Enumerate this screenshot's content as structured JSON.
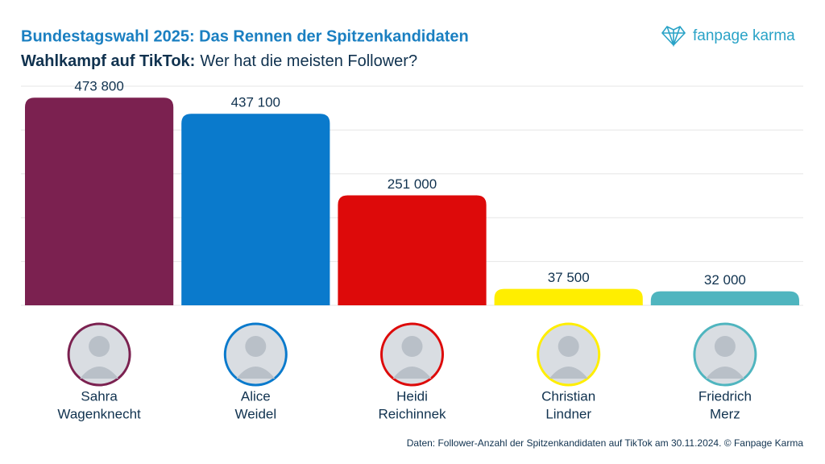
{
  "chart_data": {
    "type": "bar",
    "title": "Bundestagswahl 2025: Das Rennen der Spitzenkandidaten",
    "subtitle_bold": "Wahlkampf auf TikTok:",
    "subtitle": "Wer hat die meisten Follower?",
    "logo": "fanpage karma",
    "source": "Daten: Follower-Anzahl der Spitzenkandidaten auf TikTok am 30.11.2024. © Fanpage Karma",
    "categories": [
      [
        "Sahra",
        "Wagenknecht"
      ],
      [
        "Alice",
        "Weidel"
      ],
      [
        "Heidi",
        "Reichinnek"
      ],
      [
        "Christian",
        "Lindner"
      ],
      [
        "Friedrich",
        "Merz"
      ]
    ],
    "values": [
      473800,
      437100,
      251000,
      37500,
      32000
    ],
    "value_labels": [
      "473 800",
      "437 100",
      "251 000",
      "37 500",
      "32 000"
    ],
    "colors": [
      "#7b2150",
      "#0a7acc",
      "#dd0a0a",
      "#ffee00",
      "#4fb5bf"
    ],
    "ylim": [
      0,
      500000
    ],
    "yticks": [
      0,
      100000,
      200000,
      300000,
      400000,
      500000
    ],
    "grid": true
  }
}
